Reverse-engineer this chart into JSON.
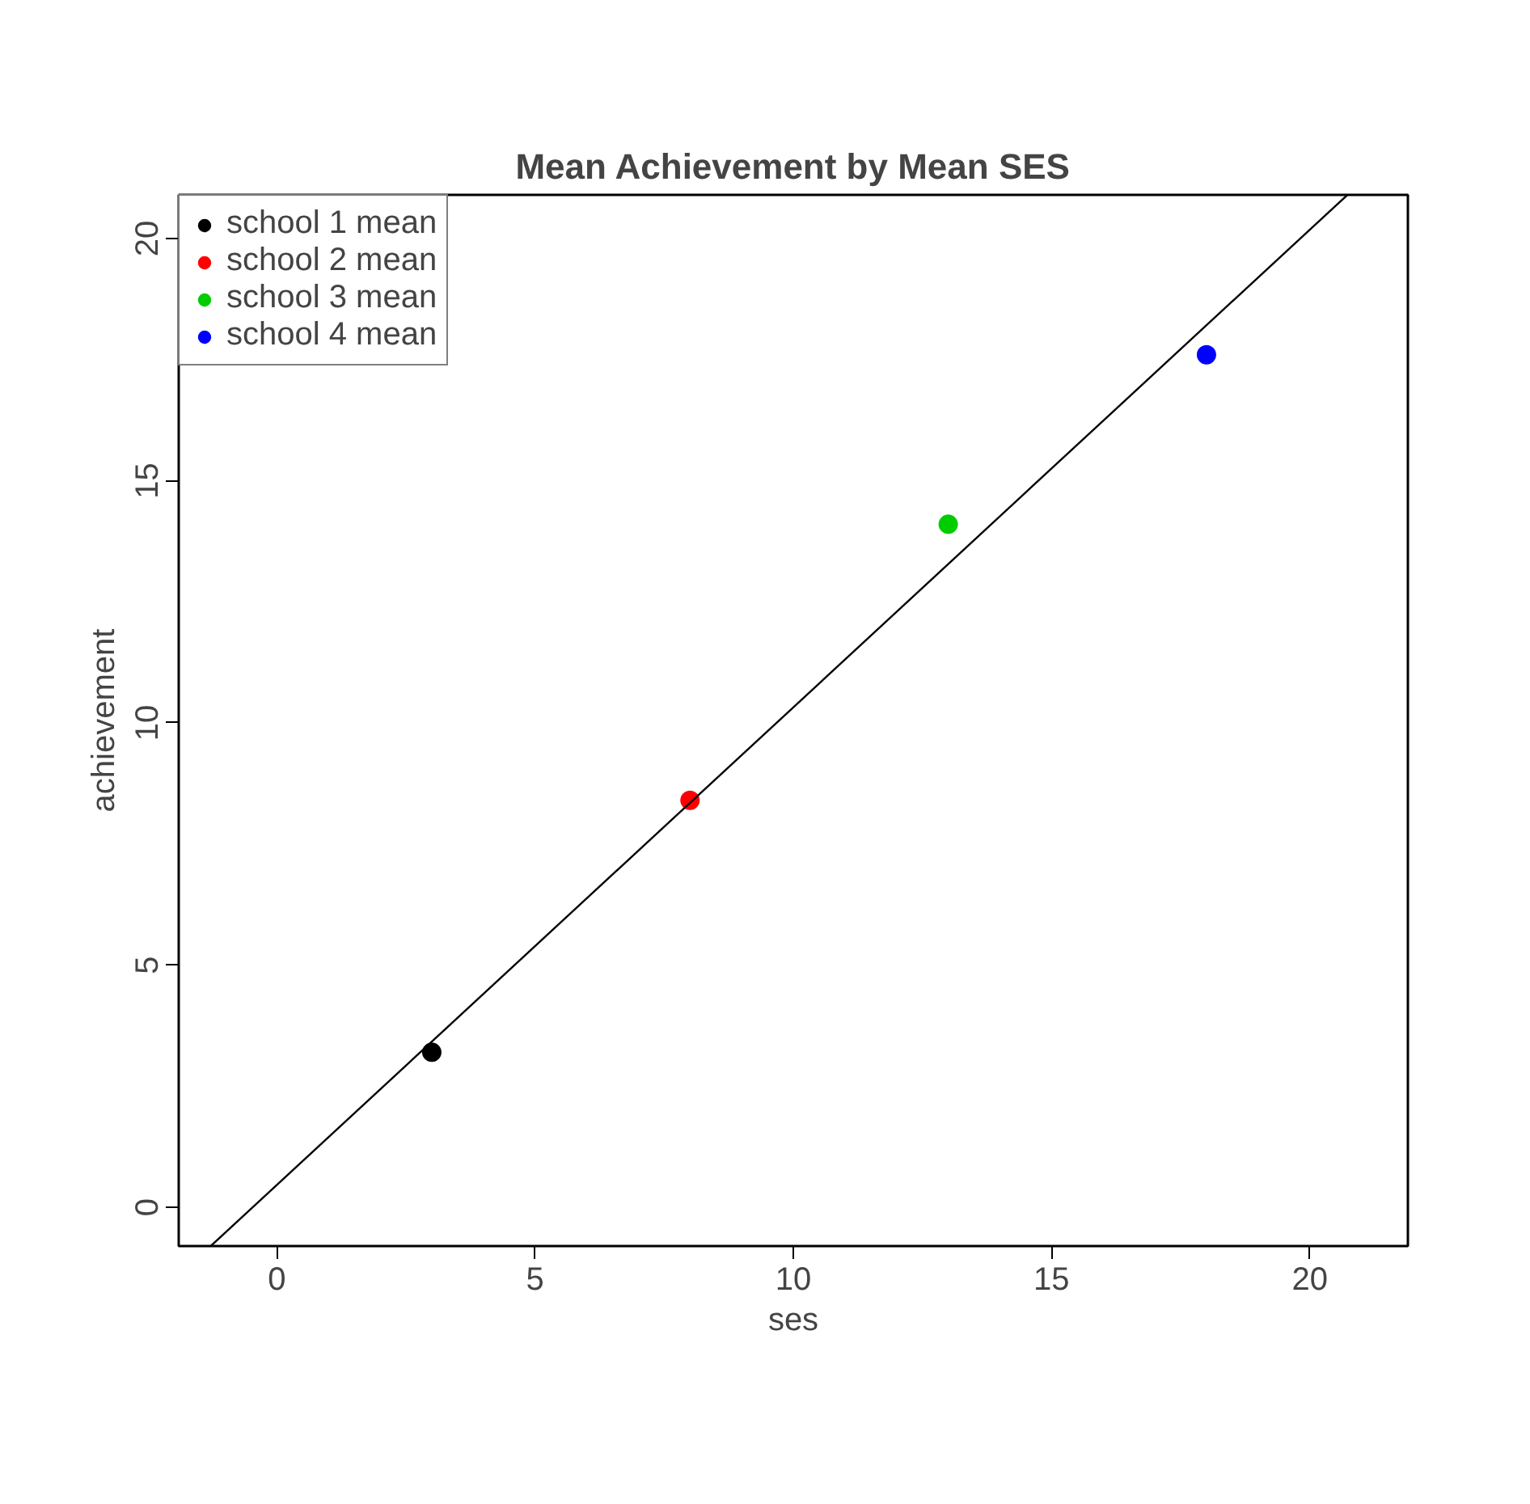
{
  "chart_data": {
    "type": "scatter",
    "title": "Mean Achievement by Mean SES",
    "xlabel": "ses",
    "ylabel": "achievement",
    "xlim": [
      -1.9,
      21.9
    ],
    "ylim": [
      -0.8,
      20.9
    ],
    "xticks": [
      0,
      5,
      10,
      15,
      20
    ],
    "yticks": [
      0,
      5,
      10,
      15,
      20
    ],
    "grid": false,
    "legend": "top left",
    "series": [
      {
        "name": "school 1 mean",
        "color": "#000000",
        "x": [
          3
        ],
        "values": [
          3.2
        ],
        "marker": "circle"
      },
      {
        "name": "school 2 mean",
        "color": "#ff0000",
        "x": [
          8
        ],
        "values": [
          8.4
        ],
        "marker": "circle"
      },
      {
        "name": "school 3 mean",
        "color": "#00cd00",
        "x": [
          13
        ],
        "values": [
          14.1
        ],
        "marker": "circle"
      },
      {
        "name": "school 4 mean",
        "color": "#0000ff",
        "x": [
          18
        ],
        "values": [
          17.6
        ],
        "marker": "circle"
      },
      {
        "type": "line",
        "color": "#000000",
        "x": [
          -1.28,
          20.73
        ],
        "values": [
          -0.8,
          20.9
        ],
        "line_style": "solid",
        "marker": "none"
      }
    ]
  }
}
